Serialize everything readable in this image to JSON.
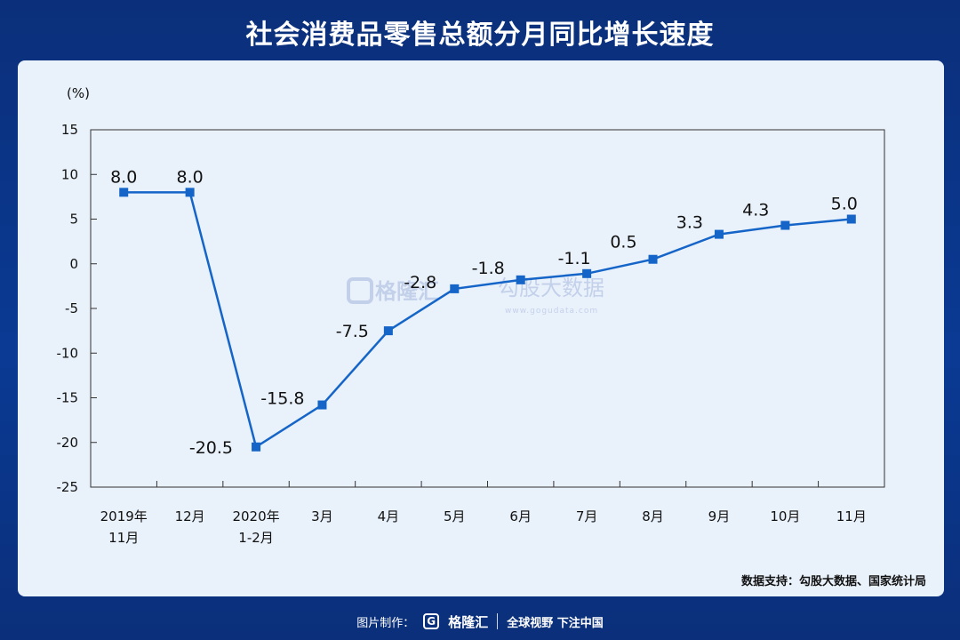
{
  "header": {
    "title": "社会消费品零售总额分月同比增长速度"
  },
  "chart_data": {
    "type": "line",
    "unit_label": "(%)",
    "categories": [
      "2019年\n11月",
      "12月",
      "2020年\n1-2月",
      "3月",
      "4月",
      "5月",
      "6月",
      "7月",
      "8月",
      "9月",
      "10月",
      "11月"
    ],
    "values": [
      8.0,
      8.0,
      -20.5,
      -15.8,
      -7.5,
      -2.8,
      -1.8,
      -1.1,
      0.5,
      3.3,
      4.3,
      5.0
    ],
    "data_labels": [
      "8.0",
      "8.0",
      "-20.5",
      "-15.8",
      "-7.5",
      "-2.8",
      "-1.8",
      "-1.1",
      "0.5",
      "3.3",
      "4.3",
      "5.0"
    ],
    "ylim": [
      -25,
      15
    ],
    "yticks": [
      "15",
      "10",
      "5",
      "0",
      "-5",
      "-10",
      "-15",
      "-20",
      "-25"
    ],
    "xlabel": "",
    "ylabel": "",
    "line_color": "#1565c8",
    "grid": false,
    "legend": false
  },
  "watermark": {
    "brand": "格隆汇",
    "brand2": "勾股大数据",
    "url": "www.gogudata.com"
  },
  "source": "数据支持：勾股大数据、国家统计局",
  "footer": {
    "made_by": "图片制作：",
    "brand": "格隆汇",
    "slogan": "全球视野 下注中国"
  }
}
